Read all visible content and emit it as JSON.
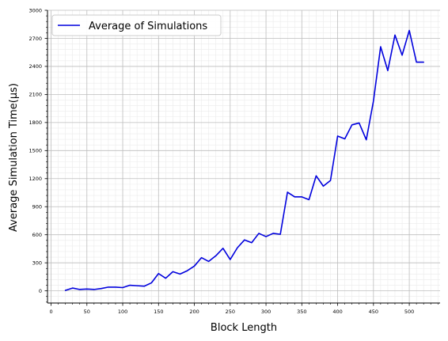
{
  "chart_data": {
    "type": "line",
    "title": "",
    "xlabel": "Block Length",
    "ylabel": "Average Simulation Time(μs)",
    "xlim": [
      -5,
      543
    ],
    "ylim": [
      -130,
      3000
    ],
    "xticks": [
      0,
      50,
      100,
      150,
      200,
      250,
      300,
      350,
      400,
      450,
      500
    ],
    "xtick_labels": [
      "0",
      "50",
      "100",
      "150",
      "200",
      "250",
      "300",
      "350",
      "400",
      "450",
      "500"
    ],
    "yticks": [
      0,
      300,
      600,
      900,
      1200,
      1500,
      1800,
      2100,
      2400,
      2700,
      3000
    ],
    "ytick_labels": [
      "0",
      "300",
      "600",
      "900",
      "1200",
      "1500",
      "1800",
      "2100",
      "2400",
      "2700",
      "3000"
    ],
    "grid": true,
    "legend_position": "top-left",
    "series": [
      {
        "name": "Average of Simulations",
        "color": "#0000dd",
        "x": [
          20,
          30,
          40,
          50,
          60,
          70,
          80,
          90,
          100,
          110,
          120,
          130,
          140,
          150,
          160,
          170,
          180,
          190,
          200,
          210,
          220,
          230,
          240,
          250,
          260,
          270,
          280,
          290,
          300,
          310,
          320,
          330,
          340,
          350,
          360,
          370,
          380,
          390,
          400,
          410,
          420,
          430,
          440,
          450,
          460,
          470,
          480,
          490,
          500,
          510,
          520
        ],
        "y": [
          5,
          30,
          15,
          20,
          15,
          25,
          40,
          40,
          35,
          60,
          55,
          50,
          85,
          185,
          135,
          205,
          180,
          215,
          265,
          355,
          315,
          375,
          455,
          335,
          460,
          545,
          515,
          615,
          580,
          615,
          605,
          1055,
          1005,
          1005,
          975,
          1230,
          1120,
          1180,
          1655,
          1625,
          1775,
          1795,
          1615,
          2030,
          2610,
          2355,
          2735,
          2520,
          2785,
          2445,
          2445
        ]
      }
    ]
  }
}
